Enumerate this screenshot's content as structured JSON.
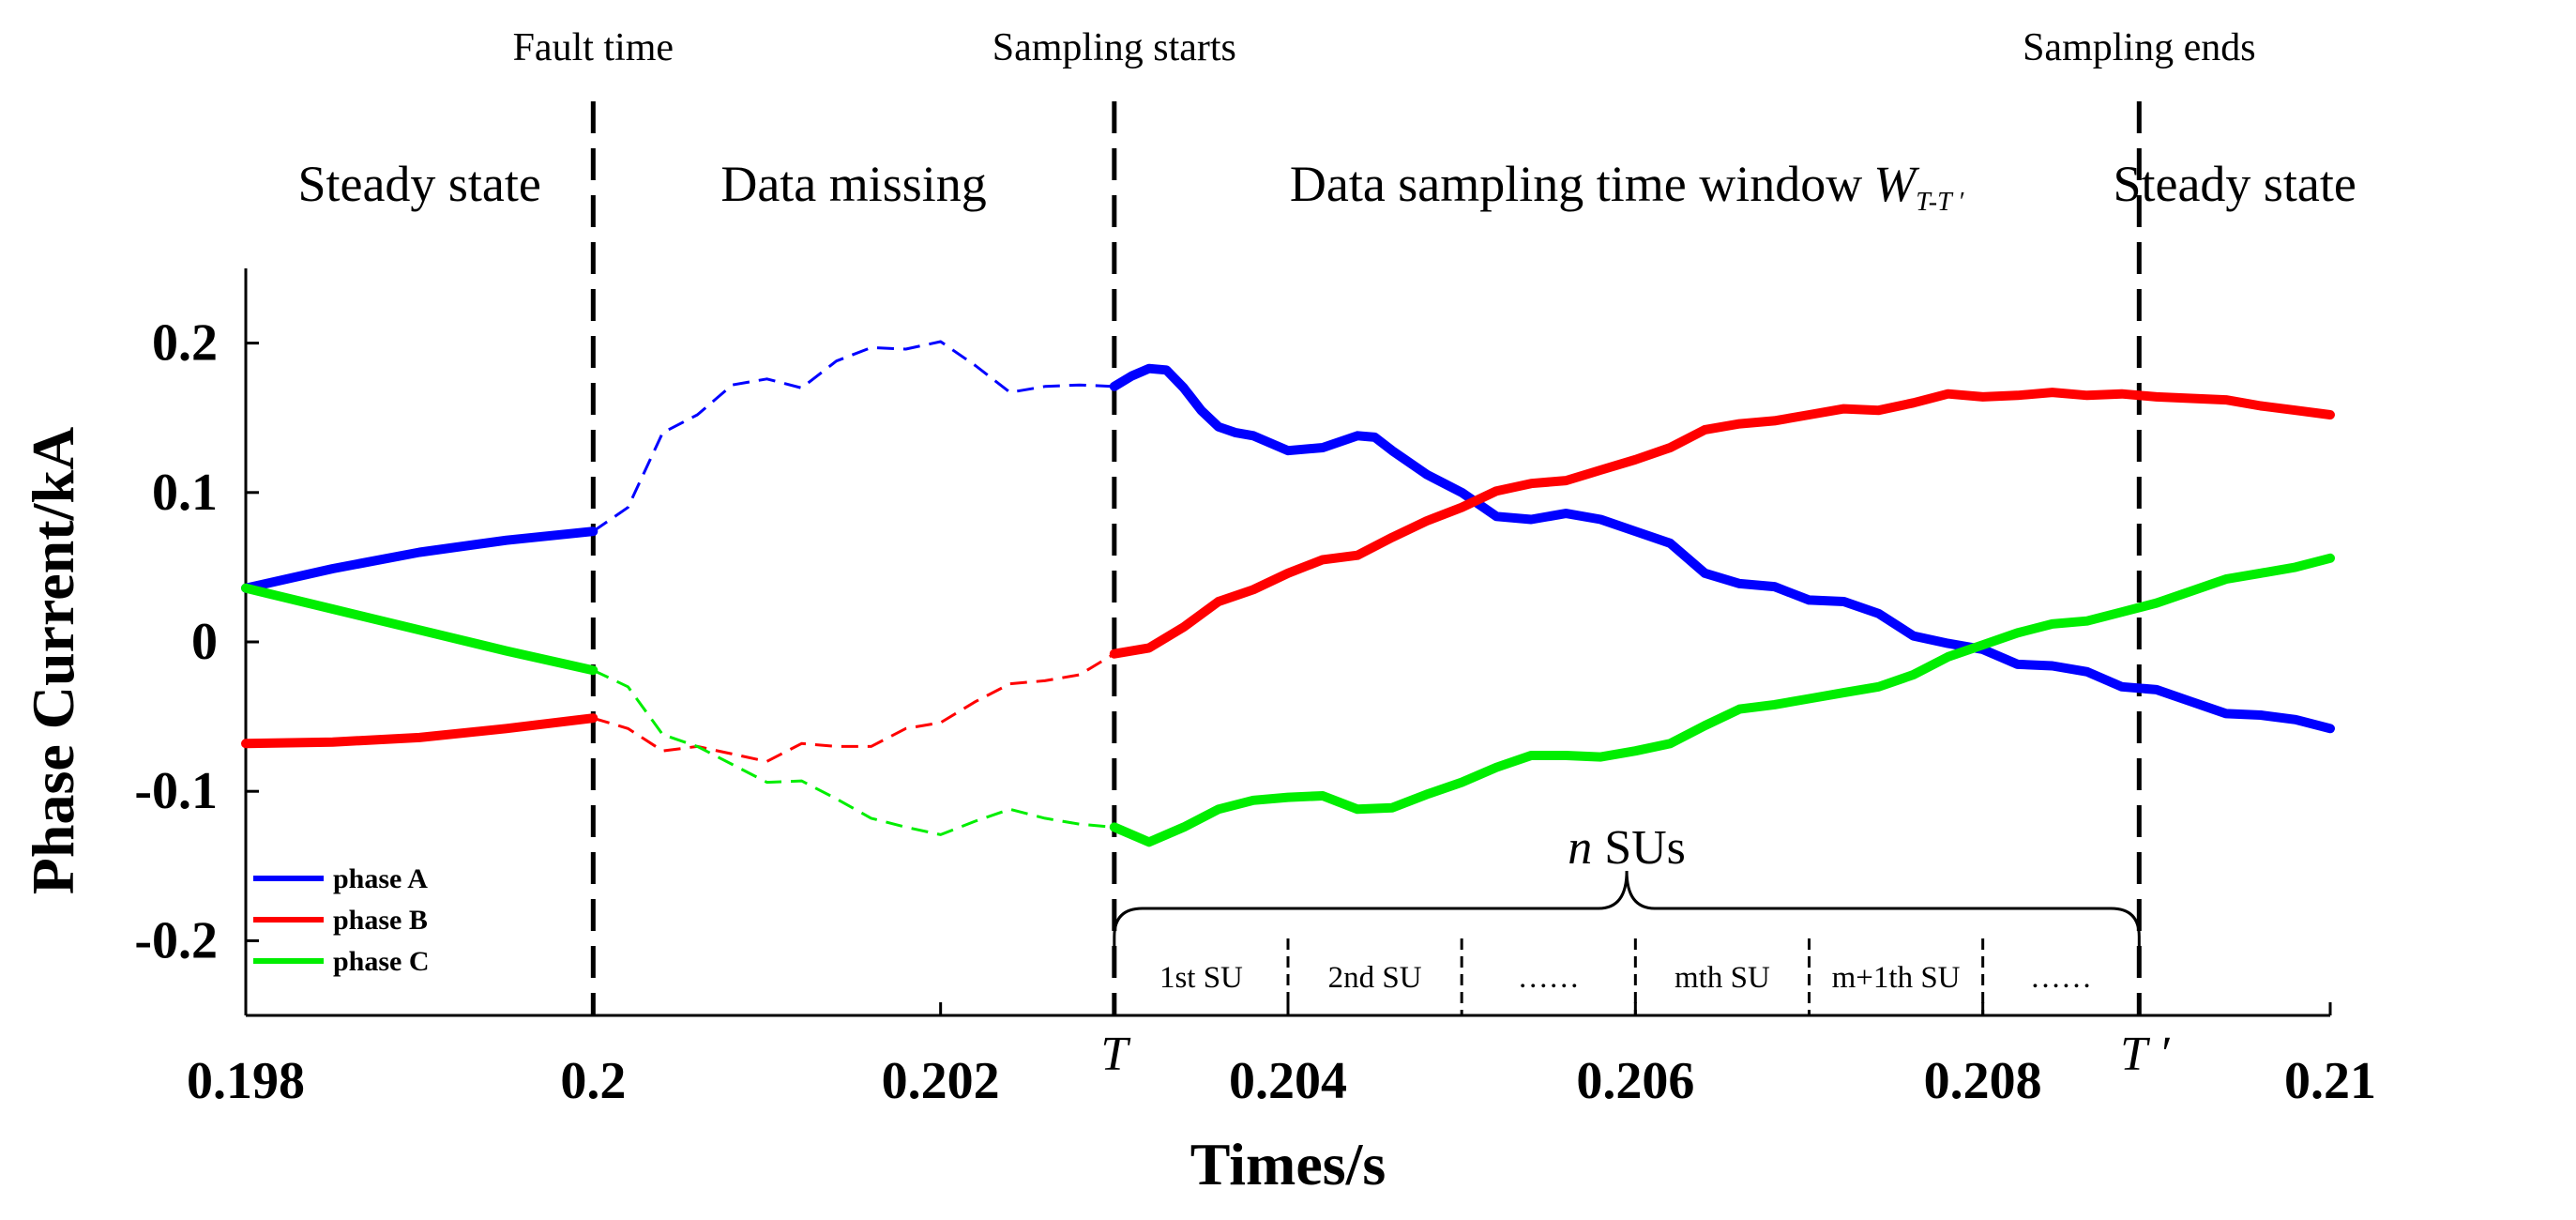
{
  "chart_data": {
    "type": "line",
    "xlabel": "Times/s",
    "ylabel": "Phase Current/kA",
    "xlim": [
      0.198,
      0.21
    ],
    "ylim": [
      -0.25,
      0.25
    ],
    "xticks": [
      {
        "value": 0.198,
        "label": "0.198"
      },
      {
        "value": 0.2,
        "label": "0.2"
      },
      {
        "value": 0.202,
        "label": "0.202"
      },
      {
        "value": 0.204,
        "label": "0.204"
      },
      {
        "value": 0.206,
        "label": "0.206"
      },
      {
        "value": 0.208,
        "label": "0.208"
      },
      {
        "value": 0.21,
        "label": "0.21"
      }
    ],
    "yticks": [
      {
        "value": 0.2,
        "label": "0.2"
      },
      {
        "value": 0.1,
        "label": "0.1"
      },
      {
        "value": 0,
        "label": "0"
      },
      {
        "value": -0.1,
        "label": "-0.1"
      },
      {
        "value": -0.2,
        "label": "-0.2"
      }
    ],
    "events": [
      {
        "x": 0.2,
        "label": "Fault time"
      },
      {
        "x": 0.203,
        "label": "Sampling starts"
      },
      {
        "x": 0.2089,
        "label": "Sampling ends"
      }
    ],
    "regions": [
      {
        "from": 0.198,
        "to": 0.2,
        "label": "Steady state"
      },
      {
        "from": 0.2,
        "to": 0.203,
        "label": "Data missing"
      },
      {
        "from": 0.203,
        "to": 0.2089,
        "label": "Data sampling time window",
        "symbol": "W",
        "subscript": "T-T ′"
      },
      {
        "from": 0.2089,
        "to": 0.21,
        "label": "Steady state"
      }
    ],
    "window_marks": {
      "start": "T",
      "end": "T ′"
    },
    "brace_label": {
      "symbol": "n",
      "text": "SUs"
    },
    "su_boundaries": [
      0.204,
      0.205,
      0.206,
      0.207,
      0.208
    ],
    "su_labels": [
      {
        "from": 0.203,
        "to": 0.204,
        "label": "1st SU"
      },
      {
        "from": 0.204,
        "to": 0.205,
        "label": "2nd SU"
      },
      {
        "from": 0.205,
        "to": 0.206,
        "label": "……"
      },
      {
        "from": 0.206,
        "to": 0.207,
        "label": "mth SU"
      },
      {
        "from": 0.207,
        "to": 0.208,
        "label": "m+1th SU"
      },
      {
        "from": 0.208,
        "to": 0.2089,
        "label": "……"
      }
    ],
    "legend_position": "bottom-left",
    "series": [
      {
        "name": "phase A",
        "color": "#0000ff",
        "x": [
          0.198,
          0.1985,
          0.199,
          0.1995,
          0.2,
          0.2002,
          0.2004,
          0.2006,
          0.2008,
          0.201,
          0.2012,
          0.2014,
          0.2016,
          0.2018,
          0.202,
          0.2022,
          0.2024,
          0.2026,
          0.2028,
          0.203,
          0.2031,
          0.2032,
          0.2033,
          0.2034,
          0.2035,
          0.2036,
          0.2037,
          0.2038,
          0.204,
          0.2042,
          0.2044,
          0.2045,
          0.2046,
          0.2048,
          0.205,
          0.2052,
          0.2054,
          0.2056,
          0.2058,
          0.206,
          0.2062,
          0.2064,
          0.2066,
          0.2068,
          0.207,
          0.2072,
          0.2074,
          0.2076,
          0.2078,
          0.208,
          0.2082,
          0.2084,
          0.2086,
          0.2088,
          0.209,
          0.2092,
          0.2094,
          0.2096,
          0.2098,
          0.21
        ],
        "y": [
          0.036,
          0.049,
          0.06,
          0.068,
          0.074,
          0.09,
          0.14,
          0.152,
          0.172,
          0.176,
          0.17,
          0.188,
          0.197,
          0.196,
          0.201,
          0.185,
          0.167,
          0.171,
          0.172,
          0.171,
          0.178,
          0.183,
          0.182,
          0.17,
          0.155,
          0.144,
          0.14,
          0.138,
          0.128,
          0.13,
          0.138,
          0.137,
          0.128,
          0.112,
          0.1,
          0.084,
          0.082,
          0.086,
          0.082,
          0.074,
          0.066,
          0.046,
          0.039,
          0.037,
          0.028,
          0.027,
          0.019,
          0.004,
          -0.001,
          -0.005,
          -0.015,
          -0.016,
          -0.02,
          -0.03,
          -0.032,
          -0.04,
          -0.048,
          -0.049,
          -0.052,
          -0.058
        ],
        "missing_range": [
          0.2,
          0.203
        ]
      },
      {
        "name": "phase B",
        "color": "#ff0000",
        "x": [
          0.198,
          0.1985,
          0.199,
          0.1995,
          0.2,
          0.2002,
          0.2004,
          0.2006,
          0.2008,
          0.201,
          0.2012,
          0.2014,
          0.2016,
          0.2018,
          0.202,
          0.2022,
          0.2024,
          0.2026,
          0.2028,
          0.203,
          0.2032,
          0.2034,
          0.2036,
          0.2038,
          0.204,
          0.2042,
          0.2044,
          0.2046,
          0.2048,
          0.205,
          0.2052,
          0.2054,
          0.2056,
          0.2058,
          0.206,
          0.2062,
          0.2064,
          0.2066,
          0.2068,
          0.207,
          0.2072,
          0.2074,
          0.2076,
          0.2078,
          0.208,
          0.2082,
          0.2084,
          0.2086,
          0.2088,
          0.209,
          0.2092,
          0.2094,
          0.2096,
          0.2098,
          0.21
        ],
        "y": [
          -0.068,
          -0.067,
          -0.064,
          -0.058,
          -0.051,
          -0.058,
          -0.073,
          -0.07,
          -0.075,
          -0.08,
          -0.068,
          -0.07,
          -0.07,
          -0.058,
          -0.054,
          -0.04,
          -0.028,
          -0.026,
          -0.022,
          -0.008,
          -0.004,
          0.01,
          0.027,
          0.035,
          0.046,
          0.055,
          0.058,
          0.07,
          0.081,
          0.09,
          0.101,
          0.106,
          0.108,
          0.115,
          0.122,
          0.13,
          0.142,
          0.146,
          0.148,
          0.152,
          0.156,
          0.155,
          0.16,
          0.166,
          0.164,
          0.165,
          0.167,
          0.165,
          0.166,
          0.164,
          0.163,
          0.162,
          0.158,
          0.155,
          0.152
        ],
        "missing_range": [
          0.2,
          0.203
        ]
      },
      {
        "name": "phase C",
        "color": "#00ee00",
        "x": [
          0.198,
          0.1985,
          0.199,
          0.1995,
          0.2,
          0.2002,
          0.2004,
          0.2006,
          0.2008,
          0.201,
          0.2012,
          0.2014,
          0.2016,
          0.2018,
          0.202,
          0.2022,
          0.2024,
          0.2026,
          0.2028,
          0.203,
          0.2032,
          0.2034,
          0.2036,
          0.2038,
          0.204,
          0.2042,
          0.2044,
          0.2046,
          0.2048,
          0.205,
          0.2052,
          0.2054,
          0.2056,
          0.2058,
          0.206,
          0.2062,
          0.2064,
          0.2066,
          0.2068,
          0.207,
          0.2072,
          0.2074,
          0.2076,
          0.2078,
          0.208,
          0.2082,
          0.2084,
          0.2086,
          0.2088,
          0.209,
          0.2092,
          0.2094,
          0.2096,
          0.2098,
          0.21
        ],
        "y": [
          0.036,
          0.022,
          0.008,
          -0.006,
          -0.019,
          -0.03,
          -0.062,
          -0.07,
          -0.082,
          -0.094,
          -0.093,
          -0.105,
          -0.118,
          -0.124,
          -0.129,
          -0.12,
          -0.112,
          -0.118,
          -0.122,
          -0.124,
          -0.134,
          -0.124,
          -0.112,
          -0.106,
          -0.104,
          -0.103,
          -0.112,
          -0.111,
          -0.102,
          -0.094,
          -0.084,
          -0.076,
          -0.076,
          -0.077,
          -0.073,
          -0.068,
          -0.056,
          -0.045,
          -0.042,
          -0.038,
          -0.034,
          -0.03,
          -0.022,
          -0.01,
          -0.002,
          0.006,
          0.012,
          0.014,
          0.02,
          0.026,
          0.034,
          0.042,
          0.046,
          0.05,
          0.056
        ],
        "missing_range": [
          0.2,
          0.203
        ]
      }
    ]
  }
}
